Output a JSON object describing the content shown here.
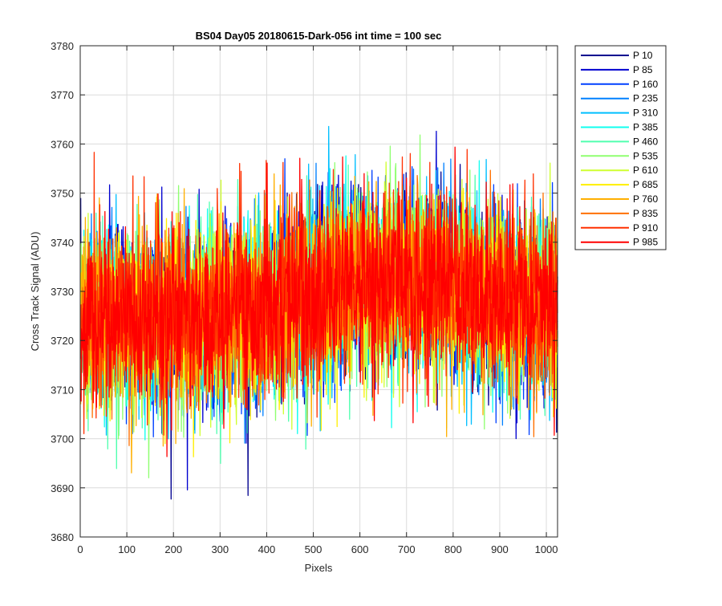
{
  "chart_data": {
    "type": "line",
    "title": "BS04 Day05 20180615-Dark-056 int time = 100 sec",
    "xlabel": "Pixels",
    "ylabel": "Cross Track Signal (ADU)",
    "xlim": [
      0,
      1024
    ],
    "ylim": [
      3680,
      3780
    ],
    "xticks": [
      0,
      100,
      200,
      300,
      400,
      500,
      600,
      700,
      800,
      900,
      1000
    ],
    "yticks": [
      3680,
      3690,
      3700,
      3710,
      3720,
      3730,
      3740,
      3750,
      3760,
      3770,
      3780
    ],
    "grid": true,
    "legend_position": "outside-top-right",
    "noise_amplitude": 9,
    "baseline": {
      "x": [
        0,
        100,
        200,
        300,
        400,
        500,
        600,
        700,
        800,
        900,
        1024
      ],
      "y": [
        3724,
        3725,
        3724,
        3725,
        3727,
        3730,
        3733,
        3733,
        3731,
        3729,
        3726
      ]
    },
    "series": [
      {
        "name": "P 10",
        "color": "#00008f"
      },
      {
        "name": "P 85",
        "color": "#0000cf"
      },
      {
        "name": "P 160",
        "color": "#0040ff"
      },
      {
        "name": "P 235",
        "color": "#0080ff"
      },
      {
        "name": "P 310",
        "color": "#00bfff"
      },
      {
        "name": "P 385",
        "color": "#10ffef"
      },
      {
        "name": "P 460",
        "color": "#50ffaf"
      },
      {
        "name": "P 535",
        "color": "#8fff70"
      },
      {
        "name": "P 610",
        "color": "#cfff30"
      },
      {
        "name": "P 685",
        "color": "#ffef00"
      },
      {
        "name": "P 760",
        "color": "#ffaf00"
      },
      {
        "name": "P 835",
        "color": "#ff7000"
      },
      {
        "name": "P 910",
        "color": "#ff3000"
      },
      {
        "name": "P 985",
        "color": "#ff0000"
      }
    ]
  }
}
